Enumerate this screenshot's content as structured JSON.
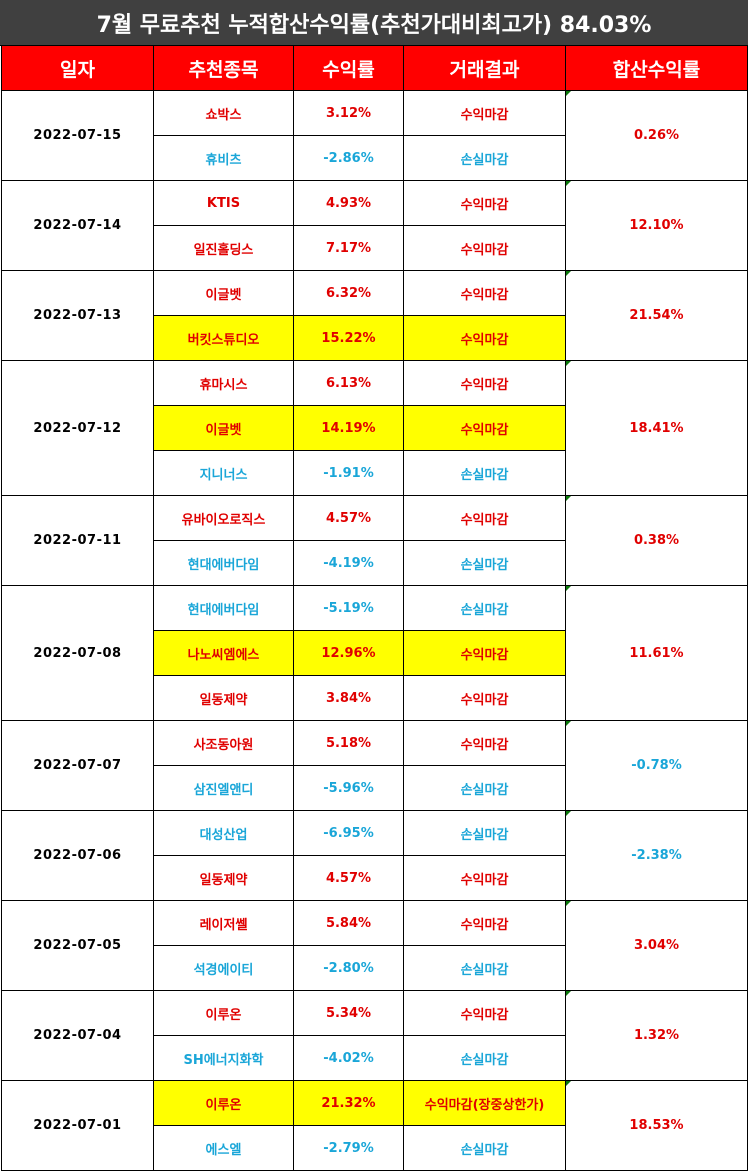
{
  "title": "7월 무료추천 누적합산수익률(추천가대비최고가) 84.03%",
  "headers": [
    "일자",
    "추천종목",
    "수익률",
    "거래결과",
    "합산수익률"
  ],
  "groups": [
    {
      "date": "2022-07-15",
      "sum": "0.26%",
      "sum_sign": "pos",
      "rows": [
        {
          "stock": "쇼박스",
          "ret": "3.12%",
          "result": "수익마감",
          "sign": "pos",
          "hl": false
        },
        {
          "stock": "휴비츠",
          "ret": "-2.86%",
          "result": "손실마감",
          "sign": "neg",
          "hl": false
        }
      ]
    },
    {
      "date": "2022-07-14",
      "sum": "12.10%",
      "sum_sign": "pos",
      "rows": [
        {
          "stock": "KTIS",
          "ret": "4.93%",
          "result": "수익마감",
          "sign": "pos",
          "hl": false
        },
        {
          "stock": "일진홀딩스",
          "ret": "7.17%",
          "result": "수익마감",
          "sign": "pos",
          "hl": false
        }
      ]
    },
    {
      "date": "2022-07-13",
      "sum": "21.54%",
      "sum_sign": "pos",
      "rows": [
        {
          "stock": "이글벳",
          "ret": "6.32%",
          "result": "수익마감",
          "sign": "pos",
          "hl": false
        },
        {
          "stock": "버킷스튜디오",
          "ret": "15.22%",
          "result": "수익마감",
          "sign": "pos",
          "hl": true
        }
      ]
    },
    {
      "date": "2022-07-12",
      "sum": "18.41%",
      "sum_sign": "pos",
      "rows": [
        {
          "stock": "휴마시스",
          "ret": "6.13%",
          "result": "수익마감",
          "sign": "pos",
          "hl": false
        },
        {
          "stock": "이글벳",
          "ret": "14.19%",
          "result": "수익마감",
          "sign": "pos",
          "hl": true
        },
        {
          "stock": "지니너스",
          "ret": "-1.91%",
          "result": "손실마감",
          "sign": "neg",
          "hl": false
        }
      ]
    },
    {
      "date": "2022-07-11",
      "sum": "0.38%",
      "sum_sign": "pos",
      "rows": [
        {
          "stock": "유바이오로직스",
          "ret": "4.57%",
          "result": "수익마감",
          "sign": "pos",
          "hl": false
        },
        {
          "stock": "현대에버다임",
          "ret": "-4.19%",
          "result": "손실마감",
          "sign": "neg",
          "hl": false
        }
      ]
    },
    {
      "date": "2022-07-08",
      "sum": "11.61%",
      "sum_sign": "pos",
      "rows": [
        {
          "stock": "현대에버다임",
          "ret": "-5.19%",
          "result": "손실마감",
          "sign": "neg",
          "hl": false
        },
        {
          "stock": "나노씨엠에스",
          "ret": "12.96%",
          "result": "수익마감",
          "sign": "pos",
          "hl": true
        },
        {
          "stock": "일동제약",
          "ret": "3.84%",
          "result": "수익마감",
          "sign": "pos",
          "hl": false
        }
      ]
    },
    {
      "date": "2022-07-07",
      "sum": "-0.78%",
      "sum_sign": "neg",
      "rows": [
        {
          "stock": "사조동아원",
          "ret": "5.18%",
          "result": "수익마감",
          "sign": "pos",
          "hl": false
        },
        {
          "stock": "삼진엘앤디",
          "ret": "-5.96%",
          "result": "손실마감",
          "sign": "neg",
          "hl": false
        }
      ]
    },
    {
      "date": "2022-07-06",
      "sum": "-2.38%",
      "sum_sign": "neg",
      "rows": [
        {
          "stock": "대성산업",
          "ret": "-6.95%",
          "result": "손실마감",
          "sign": "neg",
          "hl": false
        },
        {
          "stock": "일동제약",
          "ret": "4.57%",
          "result": "수익마감",
          "sign": "pos",
          "hl": false
        }
      ]
    },
    {
      "date": "2022-07-05",
      "sum": "3.04%",
      "sum_sign": "pos",
      "rows": [
        {
          "stock": "레이저쎌",
          "ret": "5.84%",
          "result": "수익마감",
          "sign": "pos",
          "hl": false
        },
        {
          "stock": "석경에이티",
          "ret": "-2.80%",
          "result": "손실마감",
          "sign": "neg",
          "hl": false
        }
      ]
    },
    {
      "date": "2022-07-04",
      "sum": "1.32%",
      "sum_sign": "pos",
      "rows": [
        {
          "stock": "이루온",
          "ret": "5.34%",
          "result": "수익마감",
          "sign": "pos",
          "hl": false
        },
        {
          "stock": "SH에너지화학",
          "ret": "-4.02%",
          "result": "손실마감",
          "sign": "neg",
          "hl": false
        }
      ]
    },
    {
      "date": "2022-07-01",
      "sum": "18.53%",
      "sum_sign": "pos",
      "rows": [
        {
          "stock": "이루온",
          "ret": "21.32%",
          "result": "수익마감(장중상한가)",
          "sign": "pos",
          "hl": true
        },
        {
          "stock": "에스엘",
          "ret": "-2.79%",
          "result": "손실마감",
          "sign": "neg",
          "hl": false
        }
      ]
    }
  ]
}
